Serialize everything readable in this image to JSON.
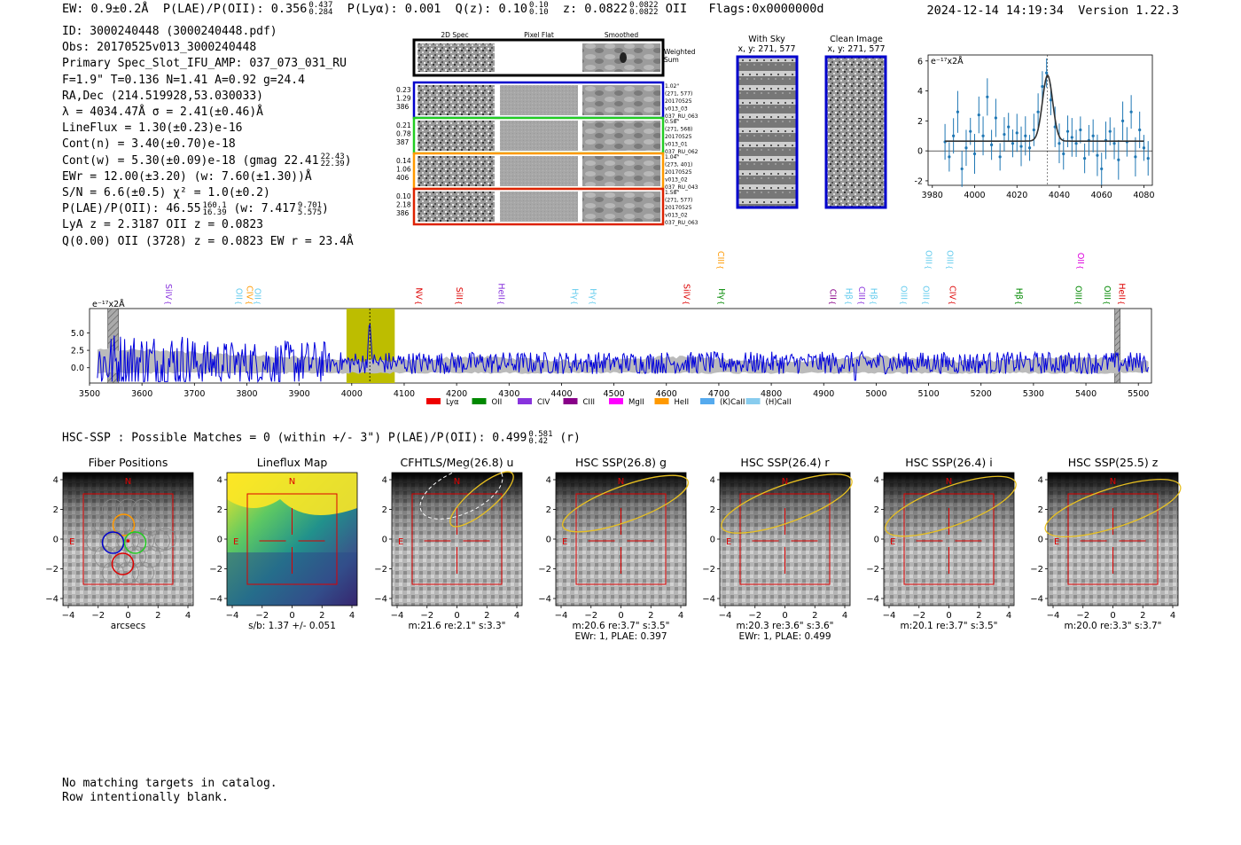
{
  "header": {
    "ew": "EW: 0.9±0.2Å",
    "plae_label": "P(LAE)/P(OII): 0.356",
    "plae_hi": "0.437",
    "plae_lo": "0.284",
    "plya": "P(Lyα): 0.001",
    "qz_label": "Q(z): 0.10",
    "qz_hi": "0.10",
    "qz_lo": "0.10",
    "z_label": "z: 0.0822",
    "z_hi": "0.0822",
    "z_lo": "0.0822",
    "z_line": "OII",
    "flags": "Flags:0x0000000d",
    "timestamp": "2024-12-14 14:19:34",
    "version": "Version 1.22.3"
  },
  "info": {
    "id": "ID: 3000240448 (3000240448.pdf)",
    "obs": "Obs: 20170525v013_3000240448",
    "primary": "Primary Spec_Slot_IFU_AMP: 037_073_031_RU",
    "fiber": "F=1.9\"  T=0.136  N=1.41  A=0.92  g=24.4",
    "radec": "RA,Dec (214.519928,53.030033)",
    "lambda": "λ = 4034.47Å  σ = 2.41(±0.46)Å",
    "lineflux": "LineFlux = 1.30(±0.23)e-16",
    "contn": "Cont(n) = 3.40(±0.70)e-18",
    "contw": "Cont(w) = 5.30(±0.09)e-18 (gmag 22.41",
    "contw_hi": "22.43",
    "contw_lo": "22.39",
    "contw_end": ")",
    "ewr": "EWr = 12.00(±3.20) (w: 7.60(±1.30))Å",
    "sn": "S/N = 6.6(±0.5)  χ² = 1.0(±0.2)",
    "plae": "P(LAE)/P(OII): 46.55",
    "plae_hi": "160.1",
    "plae_lo": "16.39",
    "plae_w": "(w: 7.417",
    "plae_w_hi": "9.701",
    "plae_w_lo": "5.575",
    "plae_end": ")",
    "lya": "LyA z = 2.3187  OII z = 0.0823",
    "q": "Q(0.00) OII (3728) z = 0.0823  EW r = 23.4Å"
  },
  "cutouts": {
    "col_titles": [
      "2D Spec",
      "Pixel Flat",
      "Smoothed"
    ],
    "weighted_sum": [
      "Weighted",
      "Sum"
    ],
    "rows": [
      {
        "left": [
          "0.23",
          "1.29",
          "386"
        ],
        "right": [
          "1.02\"",
          "(271, 577)",
          "20170525",
          "v013_03",
          "037_RU_063"
        ],
        "color": "#0000cc"
      },
      {
        "left": [
          "0.21",
          "0.78",
          "387"
        ],
        "right": [
          "0.58\"",
          "(271, 568)",
          "20170525",
          "v013_01",
          "037_RU_062"
        ],
        "color": "#22cc22"
      },
      {
        "left": [
          "0.14",
          "1.06",
          "406"
        ],
        "right": [
          "1.04\"",
          "(273, 401)",
          "20170525",
          "v013_02",
          "037_RU_043"
        ],
        "color": "#ff9900"
      },
      {
        "left": [
          "0.10",
          "2.18",
          "386"
        ],
        "right": [
          "1.58\"",
          "(271, 577)",
          "20170525",
          "v013_02",
          "037_RU_063"
        ],
        "color": "#dd2200"
      }
    ],
    "with_sky_title": [
      "With Sky",
      "x, y: 271, 577"
    ],
    "clean_title": [
      "Clean Image",
      "x, y: 271, 577"
    ]
  },
  "chart_data": [
    {
      "type": "scatter",
      "title": "",
      "unit_label": "e⁻¹⁷x2Å",
      "xlim": [
        3978,
        4084
      ],
      "ylim": [
        -2.3,
        6.4
      ],
      "xticks": [
        3980,
        4000,
        4020,
        4040,
        4060,
        4080
      ],
      "yticks": [
        -2,
        0,
        2,
        4,
        6
      ],
      "points_x": [
        3986,
        3988,
        3990,
        3992,
        3994,
        3996,
        3998,
        4000,
        4002,
        4004,
        4006,
        4008,
        4010,
        4012,
        4014,
        4016,
        4018,
        4020,
        4022,
        4024,
        4026,
        4028,
        4030,
        4032,
        4034,
        4036,
        4038,
        4040,
        4042,
        4044,
        4046,
        4048,
        4050,
        4052,
        4054,
        4056,
        4058,
        4060,
        4062,
        4064,
        4066,
        4068,
        4070,
        4072,
        4074,
        4076,
        4078,
        4080,
        4082
      ],
      "points_y": [
        0.6,
        -0.4,
        1.0,
        2.6,
        -1.2,
        0.2,
        1.3,
        -0.2,
        2.4,
        1.0,
        3.6,
        0.4,
        2.2,
        -0.4,
        1.1,
        1.6,
        0.5,
        1.2,
        0.3,
        1.0,
        0.2,
        1.4,
        2.6,
        4.3,
        5.2,
        3.4,
        1.6,
        0.5,
        -0.2,
        1.3,
        0.9,
        0.5,
        1.4,
        -0.5,
        0.7,
        1.0,
        -0.3,
        -1.2,
        0.7,
        1.3,
        0.5,
        -0.6,
        2.0,
        0.6,
        2.6,
        -0.4,
        1.4,
        0.2,
        -0.5
      ],
      "fit": {
        "continuum": 0.65,
        "peak": 4.4,
        "center": 4034.47,
        "sigma": 2.41,
        "x_start": 3986,
        "x_end": 4080
      }
    },
    {
      "type": "line",
      "title": "",
      "unit_label": "e⁻¹⁷x2Å",
      "xlim": [
        3500,
        5525
      ],
      "ylim": [
        -2.2,
        8.5
      ],
      "xticks": [
        3500,
        3600,
        3700,
        3800,
        3900,
        4000,
        4100,
        4200,
        4300,
        4400,
        4500,
        4600,
        4700,
        4800,
        4900,
        5000,
        5100,
        5200,
        5300,
        5400,
        5500
      ],
      "yticks": [
        0.0,
        2.5,
        5.0
      ],
      "ytick_labels": [
        "0.0",
        "2.5",
        "5.0"
      ],
      "highlight_band": [
        3990,
        4082
      ],
      "line_center": 4034.47,
      "masked": [
        [
          3535,
          3555
        ],
        [
          5455,
          5465
        ]
      ],
      "line_labels": [
        {
          "name": "SiIV",
          "x": 3640,
          "color": "#8833dd",
          "tier": 0
        },
        {
          "name": "OII",
          "x": 3775,
          "color": "#66ccee",
          "tier": 0
        },
        {
          "name": "CIV",
          "x": 3795,
          "color": "#ff9900",
          "tier": 0
        },
        {
          "name": "OII",
          "x": 3810,
          "color": "#66ccee",
          "tier": 0
        },
        {
          "name": "NV",
          "x": 4118,
          "color": "#dd0000",
          "tier": 0
        },
        {
          "name": "SiII",
          "x": 4195,
          "color": "#dd0000",
          "tier": 0
        },
        {
          "name": "HeII",
          "x": 4275,
          "color": "#8833dd",
          "tier": 0
        },
        {
          "name": "Hγ",
          "x": 4415,
          "color": "#66ccee",
          "tier": 0
        },
        {
          "name": "Hγ",
          "x": 4450,
          "color": "#66ccee",
          "tier": 0
        },
        {
          "name": "SiIV",
          "x": 4628,
          "color": "#dd0000",
          "tier": 0
        },
        {
          "name": "CIII",
          "x": 4693,
          "color": "#ff9900",
          "tier": 1
        },
        {
          "name": "Hγ",
          "x": 4695,
          "color": "#008800",
          "tier": 0
        },
        {
          "name": "CII",
          "x": 4907,
          "color": "#880088",
          "tier": 0
        },
        {
          "name": "Hβ",
          "x": 4938,
          "color": "#66ccee",
          "tier": 0
        },
        {
          "name": "CIII",
          "x": 4962,
          "color": "#8833dd",
          "tier": 0
        },
        {
          "name": "Hβ",
          "x": 4985,
          "color": "#66ccee",
          "tier": 0
        },
        {
          "name": "OIII",
          "x": 5042,
          "color": "#66ccee",
          "tier": 0
        },
        {
          "name": "OIII",
          "x": 5085,
          "color": "#66ccee",
          "tier": 0
        },
        {
          "name": "OIII",
          "x": 5090,
          "color": "#66ccee",
          "tier": 1
        },
        {
          "name": "OIII",
          "x": 5130,
          "color": "#66ccee",
          "tier": 1
        },
        {
          "name": "CIV",
          "x": 5135,
          "color": "#dd0000",
          "tier": 0
        },
        {
          "name": "Hβ",
          "x": 5262,
          "color": "#008800",
          "tier": 0
        },
        {
          "name": "OIII",
          "x": 5375,
          "color": "#008800",
          "tier": 0
        },
        {
          "name": "OII",
          "x": 5380,
          "color": "#dd00dd",
          "tier": 1
        },
        {
          "name": "OIII",
          "x": 5430,
          "color": "#008800",
          "tier": 0
        },
        {
          "name": "HeII",
          "x": 5458,
          "color": "#dd0000",
          "tier": 0
        }
      ],
      "legend": [
        {
          "name": "Lyα",
          "color": "#ee0000"
        },
        {
          "name": "OII",
          "color": "#008800"
        },
        {
          "name": "CIV",
          "color": "#8833dd"
        },
        {
          "name": "CIII",
          "color": "#880088"
        },
        {
          "name": "MgII",
          "color": "#ff00ff"
        },
        {
          "name": "HeII",
          "color": "#ff9900"
        },
        {
          "name": "(K)CaII",
          "color": "#55aaee"
        },
        {
          "name": "(H)CaII",
          "color": "#88ccee"
        }
      ]
    }
  ],
  "matches": {
    "text": "HSC-SSP : Possible Matches = 0 (within +/- 3\")  P(LAE)/P(OII): 0.499",
    "hi": "0.581",
    "lo": "0.42",
    "end": "(r)"
  },
  "panels": [
    {
      "title": "Fiber Positions",
      "caption1": "arcsecs",
      "caption2": "",
      "kind": "fiber"
    },
    {
      "title": "Lineflux Map",
      "caption1": "s/b: 1.37 +/- 0.051",
      "caption2": "",
      "kind": "lineflux"
    },
    {
      "title": "CFHTLS/Meg(26.8) u",
      "caption1": "m:21.6  re:2.1\"  s:3.3\"",
      "caption2": "",
      "kind": "u"
    },
    {
      "title": "HSC SSP(26.8) g",
      "caption1": "m:20.6  re:3.7\"  s:3.5\"",
      "caption2": "EWr: 1, PLAE: 0.397",
      "kind": "g"
    },
    {
      "title": "HSC SSP(26.4) r",
      "caption1": "m:20.3  re:3.6\"  s:3.6\"",
      "caption2": "EWr: 1, PLAE: 0.499",
      "kind": "r"
    },
    {
      "title": "HSC SSP(26.4) i",
      "caption1": "m:20.1  re:3.7\"  s:3.5\"",
      "caption2": "",
      "kind": "i"
    },
    {
      "title": "HSC SSP(25.5) z",
      "caption1": "m:20.0  re:3.3\"  s:3.7\"",
      "caption2": "",
      "kind": "z"
    }
  ],
  "panel_axes": {
    "xticks": [
      "−4",
      "−2",
      "0",
      "2",
      "4"
    ],
    "yticks": [
      "4",
      "2",
      "0",
      "−2",
      "−4"
    ],
    "north": "N",
    "east": "E"
  },
  "footer": {
    "line1": "No matching targets in catalog.",
    "line2": "Row intentionally blank."
  }
}
